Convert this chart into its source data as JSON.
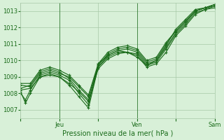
{
  "title": "",
  "xlabel": "Pression niveau de la mer( hPa )",
  "ylabel": "",
  "bg_color": "#d8f0d8",
  "plot_bg_color": "#d8f0d8",
  "grid_color": "#a8c8a8",
  "line_color": "#1a6b1a",
  "ylim": [
    1006.5,
    1013.5
  ],
  "yticks": [
    1007,
    1008,
    1009,
    1010,
    1011,
    1012,
    1013
  ],
  "xtick_labels": [
    "",
    "Jeu",
    "",
    "Ven",
    "",
    "Sam"
  ],
  "xtick_positions": [
    0,
    24,
    48,
    72,
    96,
    120
  ],
  "lines": [
    [
      0.0,
      1008.1,
      3,
      1007.4,
      6,
      1008.0,
      12,
      1009.0,
      18,
      1009.2,
      24,
      1009.0,
      30,
      1008.5,
      36,
      1007.8,
      42,
      1007.1,
      48,
      1009.6,
      54,
      1010.2,
      60,
      1010.5,
      66,
      1010.5,
      72,
      1010.3,
      78,
      1009.6,
      84,
      1009.8,
      90,
      1010.5,
      96,
      1011.5,
      102,
      1012.1,
      108,
      1012.8,
      114,
      1013.1,
      120,
      1013.2
    ],
    [
      0.0,
      1008.0,
      3,
      1007.6,
      6,
      1008.2,
      12,
      1009.1,
      18,
      1009.3,
      24,
      1009.1,
      30,
      1008.8,
      36,
      1008.0,
      42,
      1007.3,
      48,
      1009.8,
      54,
      1010.3,
      60,
      1010.6,
      66,
      1010.5,
      72,
      1010.2,
      78,
      1009.7,
      84,
      1009.9,
      90,
      1010.7,
      96,
      1011.6,
      102,
      1012.2,
      108,
      1012.9,
      114,
      1013.1,
      120,
      1013.3
    ],
    [
      0.0,
      1008.2,
      6,
      1008.3,
      12,
      1009.0,
      18,
      1009.1,
      24,
      1009.0,
      30,
      1008.6,
      36,
      1008.1,
      42,
      1007.5,
      48,
      1009.5,
      54,
      1010.1,
      60,
      1010.4,
      66,
      1010.5,
      72,
      1010.4,
      78,
      1009.7,
      84,
      1010.0,
      90,
      1010.8,
      96,
      1011.7,
      102,
      1012.3,
      108,
      1013.0,
      114,
      1013.2,
      120,
      1013.3
    ],
    [
      0.0,
      1008.5,
      6,
      1008.4,
      12,
      1009.2,
      18,
      1009.4,
      24,
      1009.2,
      30,
      1009.0,
      36,
      1008.4,
      42,
      1007.8,
      48,
      1009.7,
      54,
      1010.4,
      60,
      1010.7,
      66,
      1010.8,
      72,
      1010.6,
      78,
      1009.9,
      84,
      1010.1,
      90,
      1011.0,
      96,
      1011.8,
      102,
      1012.4,
      108,
      1013.0,
      114,
      1013.2,
      120,
      1013.4
    ],
    [
      0.0,
      1008.3,
      6,
      1008.5,
      12,
      1009.3,
      18,
      1009.5,
      24,
      1009.3,
      30,
      1008.9,
      36,
      1008.2,
      42,
      1007.6,
      48,
      1009.6,
      54,
      1010.3,
      60,
      1010.6,
      66,
      1010.7,
      72,
      1010.5,
      78,
      1009.8,
      84,
      1010.0,
      90,
      1010.9,
      96,
      1011.9,
      102,
      1012.5,
      108,
      1013.1,
      114,
      1013.2,
      120,
      1013.4
    ],
    [
      0.0,
      1008.6,
      6,
      1008.6,
      12,
      1009.4,
      18,
      1009.6,
      24,
      1009.4,
      30,
      1009.1,
      36,
      1008.5,
      42,
      1007.9,
      48,
      1009.8,
      54,
      1010.5,
      60,
      1010.8,
      66,
      1010.9,
      72,
      1010.7,
      78,
      1010.0,
      84,
      1010.2,
      90,
      1011.1,
      96,
      1011.8,
      102,
      1012.4,
      108,
      1013.0,
      114,
      1013.2,
      120,
      1013.4
    ]
  ]
}
